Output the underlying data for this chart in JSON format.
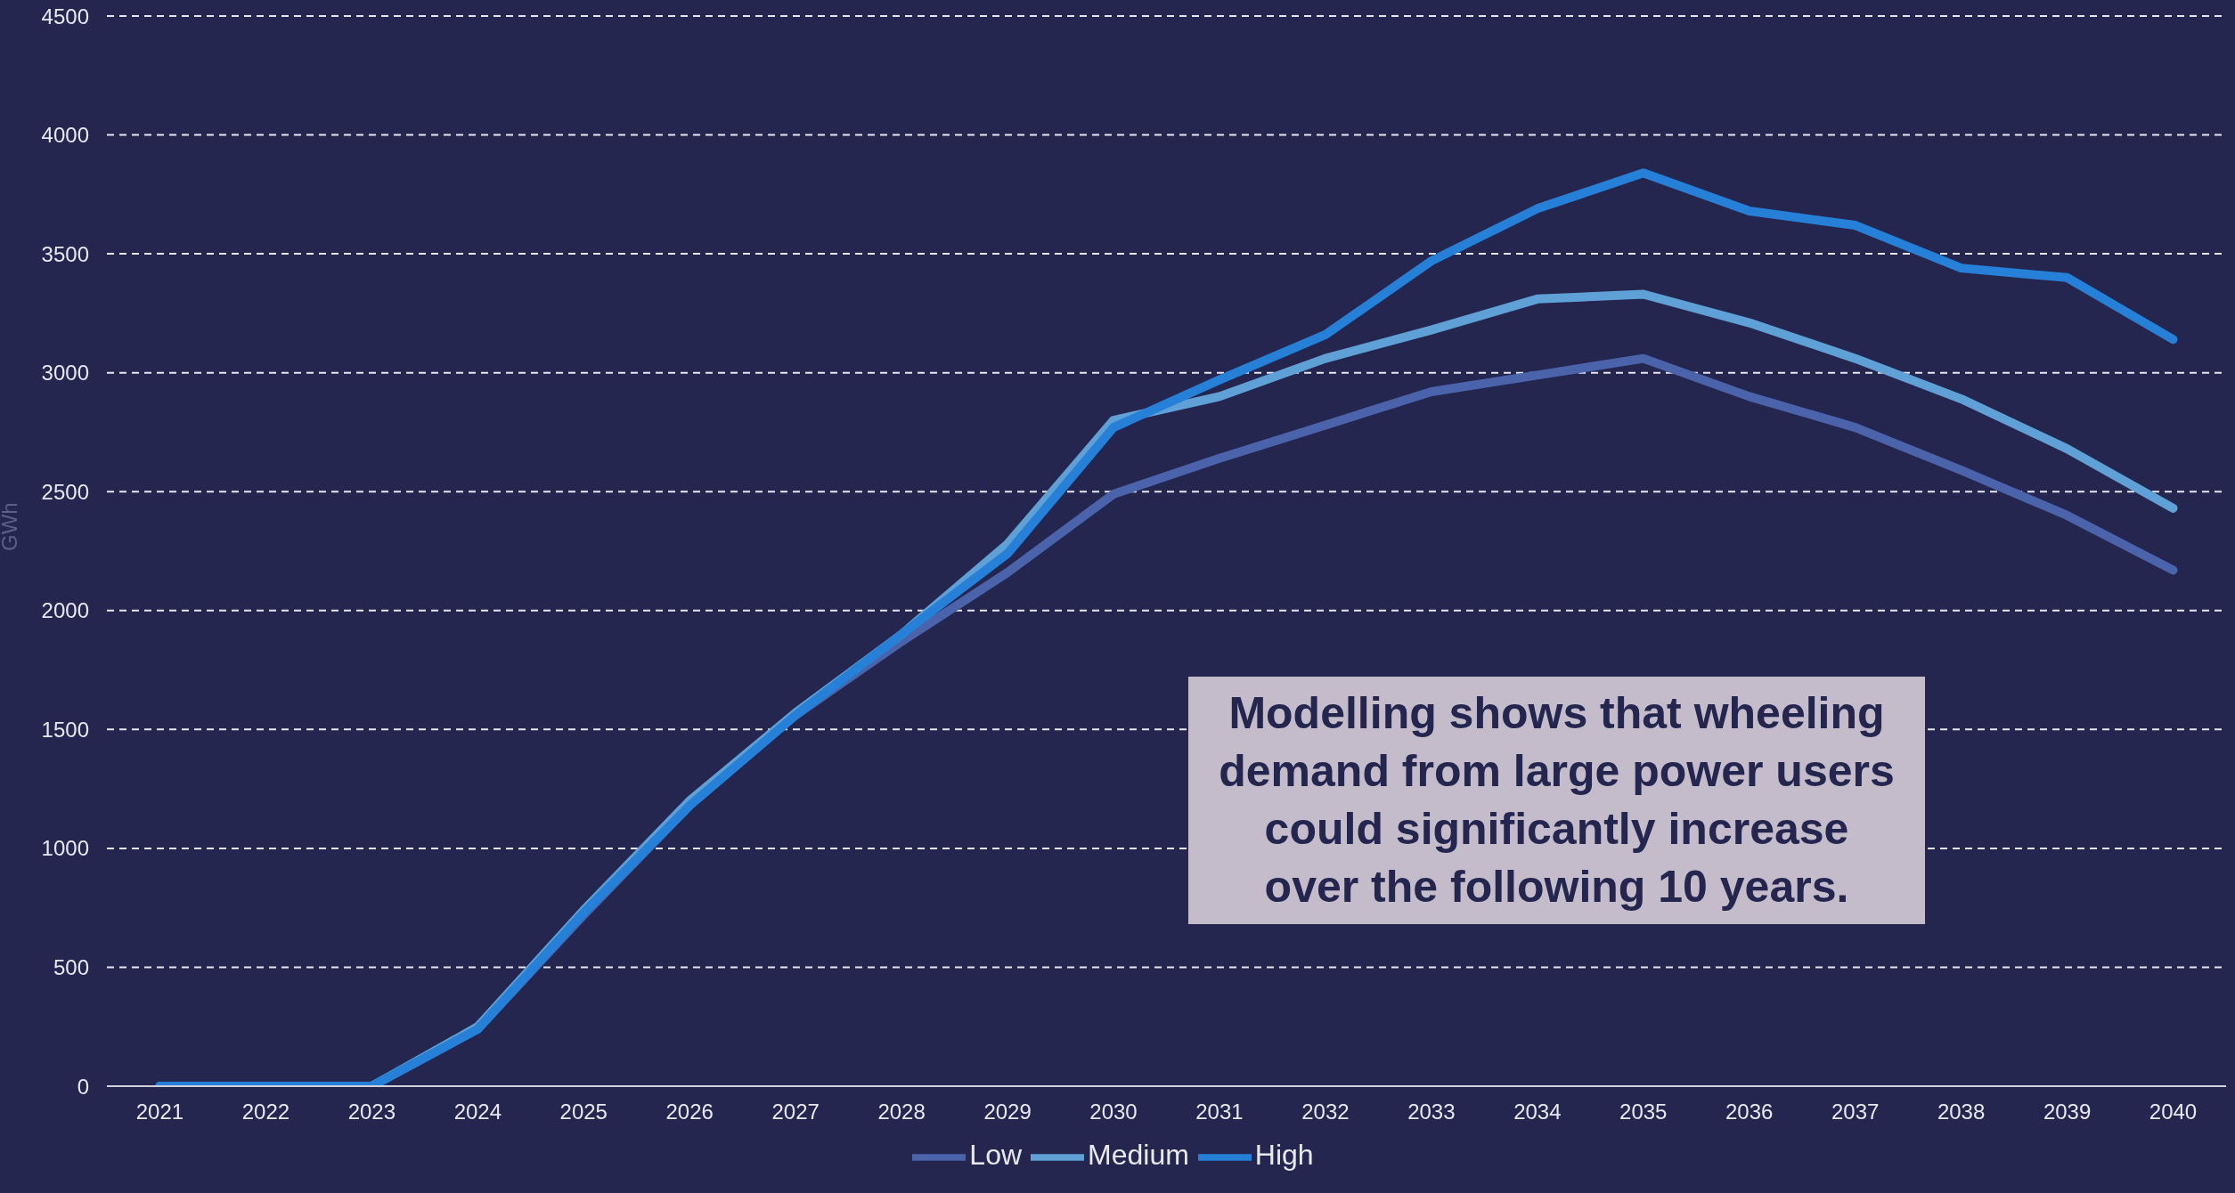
{
  "chart_data": {
    "type": "line",
    "ylabel": "GWh",
    "categories": [
      "2021",
      "2022",
      "2023",
      "2024",
      "2025",
      "2026",
      "2027",
      "2028",
      "2029",
      "2030",
      "2031",
      "2032",
      "2033",
      "2034",
      "2035",
      "2036",
      "2037",
      "2038",
      "2039",
      "2040"
    ],
    "series": [
      {
        "name": "Low",
        "color": "#4a63ab",
        "values": [
          0,
          0,
          0,
          240,
          720,
          1180,
          1560,
          1870,
          2160,
          2490,
          2640,
          2780,
          2920,
          2990,
          3060,
          2900,
          2770,
          2590,
          2400,
          2170
        ]
      },
      {
        "name": "Medium",
        "color": "#5fa0d6",
        "values": [
          0,
          0,
          0,
          250,
          740,
          1200,
          1570,
          1900,
          2280,
          2800,
          2900,
          3060,
          3180,
          3310,
          3330,
          3210,
          3060,
          2890,
          2680,
          2430
        ]
      },
      {
        "name": "High",
        "color": "#2680d8",
        "values": [
          0,
          0,
          0,
          240,
          730,
          1180,
          1560,
          1900,
          2240,
          2770,
          2970,
          3160,
          3470,
          3690,
          3840,
          3680,
          3620,
          3440,
          3400,
          3140
        ]
      }
    ],
    "ylim": [
      0,
      4500
    ],
    "yticks": [
      0,
      500,
      1000,
      1500,
      2000,
      2500,
      3000,
      3500,
      4000,
      4500
    ],
    "grid": "y",
    "legend": "bottom",
    "marker": "none",
    "line_style": "solid",
    "annotations": [
      "Modelling shows that wheeling demand from large power users could significantly increase over the following 10 years."
    ]
  }
}
